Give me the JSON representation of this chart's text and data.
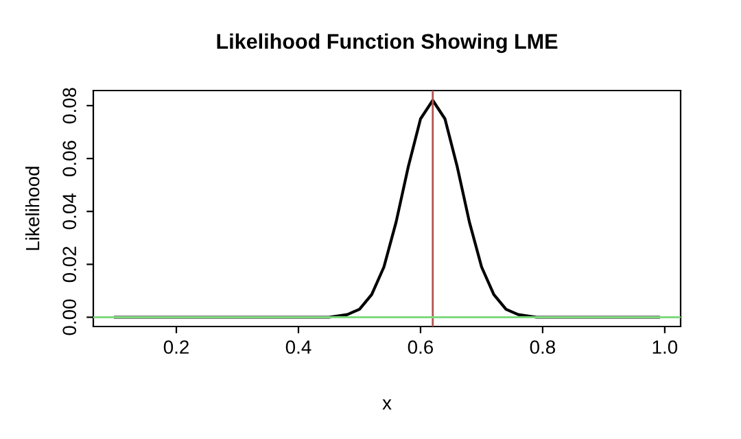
{
  "chart_data": {
    "type": "line",
    "title": "Likelihood Function Showing LME",
    "xlabel": "x",
    "ylabel": "Likelihood",
    "series": [
      {
        "color": "#000000",
        "x": [
          0.1,
          0.3,
          0.45,
          0.48,
          0.5,
          0.52,
          0.54,
          0.56,
          0.58,
          0.6,
          0.62,
          0.64,
          0.66,
          0.68,
          0.7,
          0.72,
          0.74,
          0.76,
          0.79,
          0.9,
          0.99
        ],
        "values": [
          0,
          0,
          0,
          0.001,
          0.003,
          0.0086,
          0.019,
          0.036,
          0.057,
          0.075,
          0.082,
          0.075,
          0.057,
          0.036,
          0.019,
          0.0086,
          0.003,
          0.001,
          0,
          0,
          0
        ]
      }
    ],
    "xlim": [
      0.064,
      1.026
    ],
    "ylim": [
      -0.0035,
      0.0857
    ],
    "xticks": [
      0.2,
      0.4,
      0.6,
      0.8,
      {
        "value": 1,
        "label": "1.0"
      }
    ],
    "yticks": [
      {
        "value": 0,
        "label": "0.00"
      },
      {
        "value": 0.02,
        "label": "0.02"
      },
      {
        "value": 0.04,
        "label": "0.04"
      },
      {
        "value": 0.06,
        "label": "0.06"
      },
      {
        "value": 0.08,
        "label": "0.08"
      }
    ],
    "ref_lines": [
      {
        "axis": "x",
        "value": 0.62,
        "color": "#b5524f"
      },
      {
        "axis": "y",
        "value": 0,
        "color": "#7fd97f"
      }
    ],
    "grid": false,
    "legend": false,
    "marker": "none",
    "line_style": "solid"
  }
}
